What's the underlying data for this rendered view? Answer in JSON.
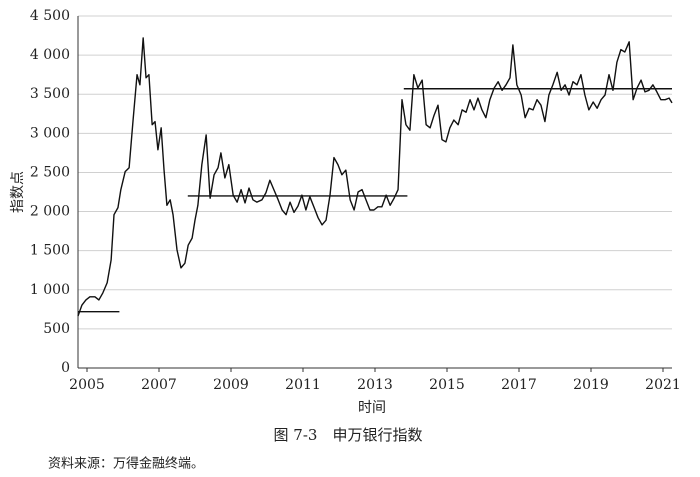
{
  "chart_data": {
    "type": "line",
    "caption": "图 7-3　申万银行指数",
    "source": "资料来源：万得金融终端。",
    "xlabel": "时间",
    "ylabel": "指数点",
    "xlim": [
      2004.75,
      2021.25
    ],
    "xticks": [
      2005,
      2007,
      2009,
      2011,
      2013,
      2015,
      2017,
      2019,
      2021
    ],
    "ylim": [
      0,
      4500
    ],
    "yticks": [
      0,
      500,
      {
        "value": 1000,
        "label": "1 000"
      },
      {
        "value": 1500,
        "label": "1 500"
      },
      {
        "value": 2000,
        "label": "2 000"
      },
      {
        "value": 2500,
        "label": "2 500"
      },
      {
        "value": 3000,
        "label": "3 000"
      },
      {
        "value": 3500,
        "label": "3 500"
      },
      {
        "value": 4000,
        "label": "4 000"
      },
      {
        "value": 4500,
        "label": "4 500"
      }
    ],
    "grid": true,
    "color": "#111111",
    "x": [
      2004.75,
      2004.86,
      2004.97,
      2005.08,
      2005.22,
      2005.33,
      2005.44,
      2005.56,
      2005.67,
      2005.75,
      2005.86,
      2005.94,
      2006.06,
      2006.17,
      2006.28,
      2006.39,
      2006.47,
      2006.56,
      2006.64,
      2006.72,
      2006.81,
      2006.89,
      2006.97,
      2007.06,
      2007.14,
      2007.22,
      2007.31,
      2007.39,
      2007.5,
      2007.61,
      2007.72,
      2007.81,
      2007.92,
      2008,
      2008.08,
      2008.19,
      2008.31,
      2008.42,
      2008.53,
      2008.64,
      2008.72,
      2008.83,
      2008.94,
      2009.06,
      2009.17,
      2009.28,
      2009.39,
      2009.5,
      2009.61,
      2009.72,
      2009.86,
      2009.97,
      2010.08,
      2010.19,
      2010.31,
      2010.42,
      2010.53,
      2010.64,
      2010.75,
      2010.86,
      2010.97,
      2011.08,
      2011.19,
      2011.31,
      2011.42,
      2011.53,
      2011.64,
      2011.75,
      2011.86,
      2011.97,
      2012.08,
      2012.19,
      2012.31,
      2012.42,
      2012.53,
      2012.64,
      2012.75,
      2012.86,
      2012.97,
      2013.08,
      2013.19,
      2013.31,
      2013.42,
      2013.53,
      2013.64,
      2013.75,
      2013.86,
      2013.97,
      2014.08,
      2014.19,
      2014.31,
      2014.42,
      2014.53,
      2014.64,
      2014.75,
      2014.86,
      2014.97,
      2015.08,
      2015.19,
      2015.31,
      2015.42,
      2015.53,
      2015.64,
      2015.75,
      2015.86,
      2015.97,
      2016.08,
      2016.19,
      2016.31,
      2016.42,
      2016.53,
      2016.64,
      2016.75,
      2016.83,
      2016.94,
      2017.06,
      2017.17,
      2017.28,
      2017.39,
      2017.5,
      2017.61,
      2017.72,
      2017.83,
      2017.94,
      2018.06,
      2018.17,
      2018.28,
      2018.39,
      2018.5,
      2018.61,
      2018.72,
      2018.83,
      2018.94,
      2019.06,
      2019.17,
      2019.28,
      2019.39,
      2019.5,
      2019.61,
      2019.72,
      2019.83,
      2019.94,
      2020.06,
      2020.17,
      2020.28,
      2020.39,
      2020.5,
      2020.61,
      2020.72,
      2020.83,
      2020.94,
      2021.06,
      2021.17,
      2021.25
    ],
    "values": [
      665,
      805,
      870,
      910,
      910,
      870,
      960,
      1090,
      1380,
      1960,
      2050,
      2280,
      2510,
      2560,
      3170,
      3750,
      3620,
      4220,
      3710,
      3750,
      3110,
      3150,
      2790,
      3070,
      2530,
      2080,
      2150,
      1960,
      1510,
      1280,
      1340,
      1570,
      1660,
      1890,
      2080,
      2600,
      2980,
      2170,
      2470,
      2560,
      2750,
      2430,
      2600,
      2210,
      2120,
      2280,
      2110,
      2300,
      2150,
      2120,
      2150,
      2240,
      2400,
      2280,
      2150,
      2020,
      1960,
      2120,
      1990,
      2070,
      2210,
      2020,
      2190,
      2050,
      1920,
      1830,
      1890,
      2210,
      2690,
      2600,
      2470,
      2530,
      2150,
      2020,
      2250,
      2280,
      2150,
      2020,
      2020,
      2060,
      2060,
      2210,
      2080,
      2170,
      2280,
      3430,
      3110,
      3040,
      3750,
      3580,
      3680,
      3110,
      3070,
      3230,
      3360,
      2920,
      2890,
      3070,
      3170,
      3110,
      3300,
      3270,
      3430,
      3300,
      3450,
      3300,
      3200,
      3430,
      3580,
      3660,
      3550,
      3620,
      3710,
      4130,
      3620,
      3490,
      3200,
      3320,
      3300,
      3430,
      3360,
      3150,
      3490,
      3620,
      3780,
      3550,
      3620,
      3490,
      3660,
      3620,
      3750,
      3490,
      3300,
      3400,
      3320,
      3430,
      3490,
      3750,
      3550,
      3910,
      4070,
      4040,
      4170,
      3430,
      3580,
      3680,
      3530,
      3550,
      3620,
      3530,
      3430,
      3430,
      3450,
      3390
    ],
    "reference_lines": [
      {
        "x": [
          2004.75,
          2005.9
        ],
        "values": [
          720,
          720
        ]
      },
      {
        "x": [
          2007.8,
          2013.9
        ],
        "values": [
          2200,
          2200
        ]
      },
      {
        "x": [
          2013.8,
          2021.25
        ],
        "values": [
          3570,
          3570
        ]
      }
    ]
  }
}
